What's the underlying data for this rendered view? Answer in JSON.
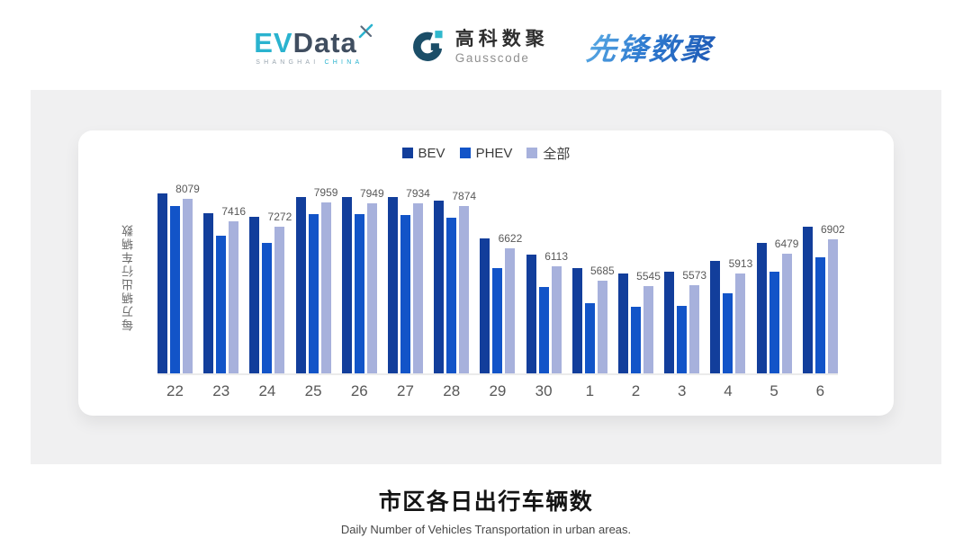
{
  "header": {
    "evdata": {
      "ev": "EV",
      "data": "Data",
      "shanghai": "SHANGHAI",
      "china": "CHINA"
    },
    "gausscode": {
      "name_cn": "高科数聚",
      "name_en": "Gausscode"
    },
    "pioneer": {
      "wordmark": "先锋数聚"
    }
  },
  "colors": {
    "evdata_teal": "#2ab3cf",
    "evdata_slate": "#404e60",
    "gauss_dark": "#1b4e68",
    "gauss_cyan": "#30b8cd",
    "pioneer_blue_light": "#5fb0e6",
    "pioneer_blue_dark": "#1c55b2",
    "panel_gray": "#f0f0f1",
    "bev_bar": "#123e9b",
    "phev_bar": "#1254c8",
    "all_bar": "#a7b1dc"
  },
  "chart_data": {
    "type": "bar",
    "title": "市区各日出行车辆数",
    "subtitle": "Daily Number of Vehicles Transportation in urban areas.",
    "ylabel": "每万辆出行车辆数",
    "xlabel": "",
    "categories": [
      "22",
      "23",
      "24",
      "25",
      "26",
      "27",
      "28",
      "29",
      "30",
      "1",
      "2",
      "3",
      "4",
      "5",
      "6"
    ],
    "series": [
      {
        "id": "bev",
        "name": "BEV",
        "color": "#123e9b",
        "labeled": false,
        "values": [
          8240,
          7660,
          7550,
          8130,
          8120,
          8120,
          8020,
          6920,
          6440,
          6050,
          5900,
          5950,
          6260,
          6800,
          7250
        ]
      },
      {
        "id": "phev",
        "name": "PHEV",
        "color": "#1254c8",
        "labeled": false,
        "values": [
          7860,
          7005,
          6780,
          7630,
          7615,
          7590,
          7525,
          6065,
          5500,
          5035,
          4945,
          4960,
          5340,
          5950,
          6370
        ]
      },
      {
        "id": "all",
        "name": "全部",
        "color": "#a7b1dc",
        "labeled": true,
        "values": [
          8079,
          7416,
          7272,
          7959,
          7949,
          7934,
          7874,
          6622,
          6113,
          5685,
          5545,
          5573,
          5913,
          6479,
          6902
        ]
      }
    ],
    "data_labels_shown_for": "全部",
    "data_labels": [
      8079,
      7416,
      7272,
      7959,
      7949,
      7934,
      7874,
      6622,
      6113,
      5685,
      5545,
      5573,
      5913,
      6479,
      6902
    ],
    "ylim": [
      3000,
      8700
    ],
    "grid": false,
    "legend_position": "top",
    "note": "BEV and PHEV values estimated from bar heights; 全部 values are the printed data labels"
  },
  "footer": {
    "title": "市区各日出行车辆数",
    "subtitle": "Daily Number of Vehicles Transportation in urban areas."
  }
}
